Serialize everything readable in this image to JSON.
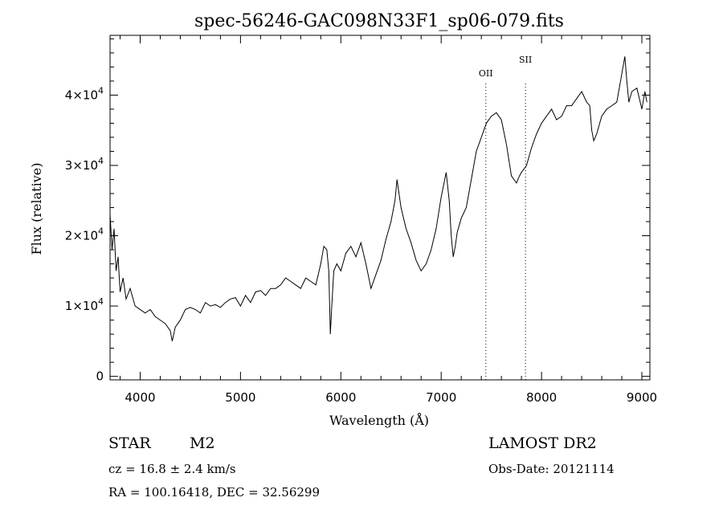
{
  "chart_data": {
    "type": "line",
    "title": "spec-56246-GAC098N33F1_sp06-079.fits",
    "xlabel": "Wavelength (Å)",
    "ylabel": "Flux (relative)",
    "xlim": [
      3700,
      9080
    ],
    "ylim": [
      -500,
      48500
    ],
    "x_ticks": [
      4000,
      5000,
      6000,
      7000,
      8000,
      9000
    ],
    "y_ticks": [
      {
        "value": 0,
        "mantissa": "0",
        "exponent": ""
      },
      {
        "value": 10000,
        "mantissa": "1×10",
        "exponent": "4"
      },
      {
        "value": 20000,
        "mantissa": "2×10",
        "exponent": "4"
      },
      {
        "value": 30000,
        "mantissa": "3×10",
        "exponent": "4"
      },
      {
        "value": 40000,
        "mantissa": "4×10",
        "exponent": "4"
      }
    ],
    "grid": false,
    "lines": [
      {
        "label": "OII",
        "wavelength": 7445
      },
      {
        "label": "SII",
        "wavelength": 7840
      }
    ],
    "series": [
      {
        "x": [
          3700,
          3720,
          3740,
          3760,
          3780,
          3800,
          3830,
          3860,
          3900,
          3950,
          4000,
          4050,
          4100,
          4150,
          4200,
          4250,
          4300,
          4320,
          4350,
          4400,
          4450,
          4500,
          4550,
          4600,
          4650,
          4700,
          4750,
          4800,
          4850,
          4900,
          4950,
          5000,
          5050,
          5100,
          5150,
          5200,
          5250,
          5300,
          5350,
          5400,
          5450,
          5500,
          5550,
          5600,
          5650,
          5700,
          5750,
          5800,
          5830,
          5860,
          5880,
          5895,
          5910,
          5930,
          5960,
          6000,
          6050,
          6100,
          6150,
          6200,
          6250,
          6300,
          6350,
          6400,
          6450,
          6500,
          6540,
          6560,
          6600,
          6650,
          6700,
          6750,
          6800,
          6850,
          6900,
          6950,
          7000,
          7050,
          7080,
          7100,
          7120,
          7140,
          7160,
          7200,
          7250,
          7300,
          7350,
          7400,
          7450,
          7500,
          7550,
          7600,
          7650,
          7700,
          7750,
          7780,
          7800,
          7850,
          7900,
          7950,
          8000,
          8050,
          8100,
          8150,
          8200,
          8250,
          8300,
          8350,
          8400,
          8450,
          8480,
          8500,
          8520,
          8550,
          8600,
          8650,
          8700,
          8750,
          8800,
          8830,
          8850,
          8870,
          8900,
          8950,
          9000,
          9030,
          9050
        ],
        "y": [
          23000,
          18000,
          21000,
          15000,
          17000,
          12000,
          14000,
          11000,
          12500,
          10000,
          9500,
          9000,
          9500,
          8500,
          8000,
          7500,
          6500,
          5000,
          7000,
          8000,
          9500,
          9800,
          9500,
          9000,
          10500,
          10000,
          10200,
          9800,
          10500,
          11000,
          11200,
          10000,
          11500,
          10500,
          12000,
          12200,
          11500,
          12500,
          12500,
          13000,
          14000,
          13500,
          13000,
          12500,
          14000,
          13500,
          13000,
          16000,
          18500,
          18000,
          15000,
          6000,
          10000,
          15000,
          16000,
          15000,
          17500,
          18500,
          17000,
          19000,
          16000,
          12500,
          14500,
          16500,
          19500,
          22000,
          25000,
          28000,
          24000,
          21000,
          19000,
          16500,
          15000,
          16000,
          18000,
          21000,
          25500,
          29000,
          25000,
          20000,
          17000,
          18500,
          20500,
          22500,
          24000,
          28000,
          32000,
          34000,
          36000,
          37000,
          37500,
          36500,
          33000,
          28500,
          27500,
          28500,
          29000,
          30000,
          32500,
          34500,
          36000,
          37000,
          38000,
          36500,
          37000,
          38500,
          38500,
          39500,
          40500,
          39000,
          38500,
          35000,
          33500,
          34500,
          37000,
          38000,
          38500,
          39000,
          43000,
          45500,
          42000,
          39000,
          40500,
          41000,
          38000,
          40500,
          39000
        ]
      }
    ]
  },
  "info": {
    "class_label": "STAR",
    "subclass": "M2",
    "survey": "LAMOST DR2",
    "redshift": "cz = 16.8 ± 2.4 km/s",
    "obs_date": "Obs-Date: 20121114",
    "coords": "RA = 100.16418, DEC =  32.56299"
  }
}
